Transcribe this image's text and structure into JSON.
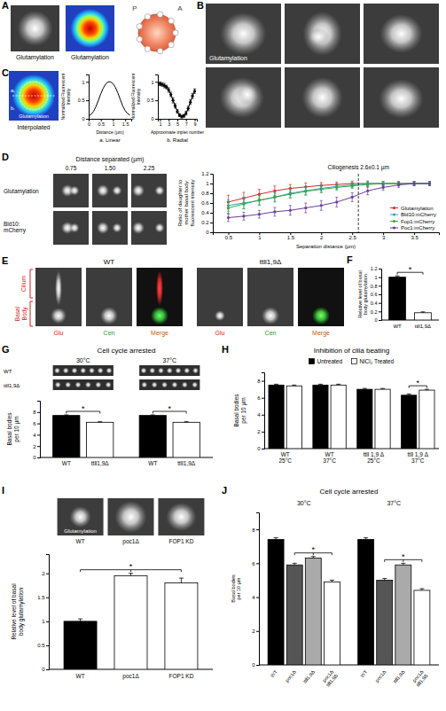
{
  "chart_data": [
    {
      "type": "line",
      "title": "a. Linear",
      "x_label": "Distance (µm)",
      "y_label": "Normalized Fluorescent Intensity",
      "x": [
        0,
        0.1,
        0.2,
        0.3,
        0.4,
        0.5,
        0.6,
        0.7,
        0.8,
        0.9,
        1.0,
        1.1,
        1.2,
        1.3,
        1.4,
        1.5,
        1.6,
        1.7
      ],
      "values": [
        0.08,
        0.12,
        0.2,
        0.33,
        0.5,
        0.68,
        0.83,
        0.94,
        1.0,
        1.0,
        0.95,
        0.85,
        0.7,
        0.52,
        0.35,
        0.22,
        0.14,
        0.1
      ],
      "color": "#000000",
      "xlim": [
        0,
        1.75
      ],
      "xticks": [
        0,
        0.5,
        1,
        1.5
      ],
      "ylim": [
        0,
        1.2
      ],
      "yticks": [
        0,
        0.5,
        1
      ]
    },
    {
      "type": "line",
      "title": "b. Radial",
      "x_label": "Approximate triplet number",
      "y_label": "Normalized Fluorescent Intensity",
      "x": [
        1,
        1.5,
        2,
        2.5,
        3,
        3.5,
        4,
        4.5,
        5,
        5.5,
        6,
        6.5,
        7,
        7.5,
        8,
        8.5,
        9
      ],
      "values": [
        0.95,
        0.93,
        0.9,
        0.86,
        0.78,
        0.66,
        0.5,
        0.35,
        0.2,
        0.1,
        0.06,
        0.08,
        0.15,
        0.28,
        0.45,
        0.62,
        0.75
      ],
      "errors": [
        0.05,
        0.05,
        0.06,
        0.05,
        0.06,
        0.06,
        0.07,
        0.06,
        0.05,
        0.04,
        0.04,
        0.04,
        0.05,
        0.06,
        0.06,
        0.07,
        0.06
      ],
      "color": "#000000",
      "marker": "circle",
      "xlim": [
        0.5,
        9.5
      ],
      "xticks": [
        1,
        3,
        5,
        7,
        9
      ],
      "ylim": [
        0,
        1.2
      ],
      "yticks": [
        0,
        0.5,
        1
      ]
    },
    {
      "type": "line",
      "x_label": "Separation distance (µm)",
      "y_label": "Ratio of daughter to mother basal body fluorescent intensity",
      "x": [
        0.5,
        0.75,
        1,
        1.25,
        1.5,
        1.75,
        2,
        2.25,
        2.5,
        2.75,
        3,
        3.25,
        3.5,
        3.75
      ],
      "series": [
        {
          "name": "Glutamylation",
          "color": "#d42a2a",
          "values": [
            0.62,
            0.7,
            0.78,
            0.85,
            0.9,
            0.93,
            0.96,
            0.98,
            1.0,
            1.0,
            1.0,
            1.0,
            1.0,
            1.0
          ],
          "errors": [
            0.14,
            0.12,
            0.1,
            0.1,
            0.08,
            0.08,
            0.06,
            0.05,
            0.05,
            0.05,
            0.04,
            0.04,
            0.04,
            0.04
          ]
        },
        {
          "name": "Bld10:mCherry",
          "color": "#2aa6c8",
          "values": [
            0.55,
            0.6,
            0.65,
            0.72,
            0.8,
            0.85,
            0.9,
            0.94,
            0.97,
            1.0,
            1.0,
            1.0,
            1.0,
            1.0
          ],
          "errors": [
            0.12,
            0.12,
            0.1,
            0.1,
            0.09,
            0.08,
            0.07,
            0.06,
            0.05,
            0.05,
            0.04,
            0.04,
            0.04,
            0.04
          ]
        },
        {
          "name": "Fop1:mCherry",
          "color": "#3aa83a",
          "values": [
            0.5,
            0.58,
            0.66,
            0.72,
            0.78,
            0.84,
            0.88,
            0.92,
            0.95,
            0.98,
            1.0,
            1.0,
            1.0,
            1.0
          ],
          "errors": [
            0.12,
            0.1,
            0.1,
            0.09,
            0.08,
            0.08,
            0.07,
            0.06,
            0.05,
            0.05,
            0.04,
            0.04,
            0.04,
            0.04
          ]
        },
        {
          "name": "Poc1:mCherry",
          "color": "#6a3d9a",
          "values": [
            0.3,
            0.33,
            0.37,
            0.42,
            0.45,
            0.5,
            0.55,
            0.62,
            0.72,
            0.85,
            0.92,
            0.97,
            1.0,
            1.0
          ],
          "errors": [
            0.08,
            0.08,
            0.08,
            0.09,
            0.1,
            0.1,
            0.1,
            0.1,
            0.09,
            0.08,
            0.06,
            0.05,
            0.04,
            0.04
          ]
        }
      ],
      "marker": "circle",
      "legend": "lower right",
      "xlim": [
        0.25,
        3.9
      ],
      "xticks": [
        0.5,
        1,
        1.5,
        2,
        2.5,
        3,
        3.5
      ],
      "ylim": [
        0,
        1.2
      ],
      "yticks": [
        0,
        0.2,
        0.4,
        0.6,
        0.8,
        1,
        1.2
      ],
      "annotations": [
        {
          "text": "Ciliogenesis 2.6±0.1 µm",
          "x": 2.6
        }
      ]
    },
    {
      "type": "bar",
      "y_label": "Relative level of basal body glutamylation",
      "categories": [
        "WT",
        "ttll1,9Δ"
      ],
      "values": [
        1,
        0.17
      ],
      "errors": [
        0.03,
        0.02
      ],
      "colors": [
        "#000000",
        "#ffffff"
      ],
      "ylim": [
        0,
        1.2
      ],
      "yticks": [
        0,
        0.2,
        0.4,
        0.6,
        0.8,
        1,
        1.2
      ],
      "annotations": [
        {
          "text": "*",
          "bars": [
            0,
            1
          ]
        }
      ]
    },
    {
      "type": "bar",
      "title": "Cell cycle arrested",
      "y_label": "Basal bodies per 10 µm",
      "categories": [
        "30°C",
        "37°C"
      ],
      "series": [
        {
          "name": "WT",
          "color": "#000000",
          "values": [
            7.4,
            7.4
          ],
          "errors": [
            0.1,
            0.1
          ]
        },
        {
          "name": "ttll1,9Δ",
          "color": "#ffffff",
          "values": [
            6.2,
            6.2
          ],
          "errors": [
            0.1,
            0.1
          ]
        }
      ],
      "ylim": [
        0,
        10
      ],
      "yticks": [
        0,
        2,
        4,
        6,
        8
      ],
      "annotations": [
        {
          "text": "*",
          "group": 0,
          "bars": [
            0,
            1
          ]
        },
        {
          "text": "*",
          "group": 1,
          "bars": [
            0,
            1
          ]
        }
      ]
    },
    {
      "type": "bar",
      "title": "Inhibition of cilia beating",
      "y_label": "Basal bodies per 10 µm",
      "categories": [
        "WT 25°C",
        "WT 37°C",
        "ttll 1,9 Δ 25°C",
        "ttll 1,9 Δ 37°C"
      ],
      "series": [
        {
          "name": "Untreated",
          "color": "#000000",
          "values": [
            7.5,
            7.5,
            7.0,
            6.3
          ],
          "errors": [
            0.1,
            0.1,
            0.1,
            0.15
          ]
        },
        {
          "name": "NiCl₂ Treated",
          "color": "#ffffff",
          "values": [
            7.4,
            7.5,
            7.0,
            6.9
          ],
          "errors": [
            0.1,
            0.1,
            0.1,
            0.1
          ]
        }
      ],
      "legend": "top",
      "ylim": [
        0,
        9
      ],
      "yticks": [
        0,
        2,
        4,
        6,
        8
      ],
      "annotations": [
        {
          "text": "*",
          "group": 3,
          "bars": [
            0,
            1
          ]
        }
      ]
    },
    {
      "type": "bar",
      "y_label": "Relative level of basal body glutamylation",
      "categories": [
        "WT",
        "poc1Δ",
        "FOP1 KD"
      ],
      "values": [
        1,
        1.95,
        1.8
      ],
      "errors": [
        0.05,
        0.05,
        0.1
      ],
      "colors": [
        "#000000",
        "#ffffff",
        "#ffffff"
      ],
      "ylim": [
        0,
        2.4
      ],
      "yticks": [
        0,
        0.5,
        1,
        1.5,
        2
      ],
      "annotations": [
        {
          "text": "*",
          "bars": [
            0,
            1,
            2
          ]
        }
      ]
    },
    {
      "type": "bar",
      "title": "Cell cycle arrested",
      "y_label": "Basal bodies per 10 µm",
      "categories": [
        "30°C",
        "37°C"
      ],
      "series": [
        {
          "name": "WT",
          "color": "#000000",
          "values": [
            7.4,
            7.4
          ],
          "errors": [
            0.1,
            0.1
          ]
        },
        {
          "name": "poc1Δ",
          "color": "#555555",
          "values": [
            5.9,
            5.0
          ],
          "errors": [
            0.1,
            0.1
          ]
        },
        {
          "name": "ttll1,9Δ",
          "color": "#aaaaaa",
          "values": [
            6.3,
            5.9
          ],
          "errors": [
            0.1,
            0.1
          ]
        },
        {
          "name": "poc1Δ ttll1,9Δ",
          "color": "#ffffff",
          "values": [
            4.9,
            4.4
          ],
          "errors": [
            0.1,
            0.1
          ]
        }
      ],
      "ylim": [
        0,
        9
      ],
      "yticks": [
        0,
        2,
        4,
        6,
        8
      ],
      "annotations": [
        {
          "text": "*",
          "group": 0,
          "bars": [
            1,
            2,
            3
          ]
        },
        {
          "text": "*",
          "group": 1,
          "bars": [
            1,
            2,
            3
          ]
        }
      ]
    }
  ],
  "figure": {
    "letters": [
      "A",
      "B",
      "C",
      "D",
      "E",
      "F",
      "G",
      "H",
      "I",
      "J"
    ],
    "A": {
      "labels": [
        "Glutamylation",
        "Glutamylation"
      ]
    },
    "schematic": {
      "labels": [
        "P",
        "A"
      ]
    },
    "B": {
      "label": "Glutamylation"
    },
    "C": {
      "image_label": "Glutamylation",
      "caption": "Interpolated",
      "profiles": [
        "a.",
        "b."
      ]
    },
    "D": {
      "header": "Distance separated (µm)",
      "distances": [
        "0.75",
        "1.50",
        "2.25"
      ],
      "rows": [
        "Glutamylation",
        "Bld10: mCherry"
      ]
    },
    "E": {
      "strains": [
        "WT",
        "ttll1,9Δ"
      ],
      "regions": [
        "Cilium",
        "Basal Body"
      ],
      "channels": [
        "Glu",
        "Cen",
        "Merge"
      ]
    },
    "G": {
      "rows": [
        "WT",
        "ttll1,9Δ"
      ]
    },
    "I": {
      "image_label": "Glutamylation",
      "samples": [
        "WT",
        "poc1Δ",
        "FOP1 KD"
      ]
    }
  }
}
